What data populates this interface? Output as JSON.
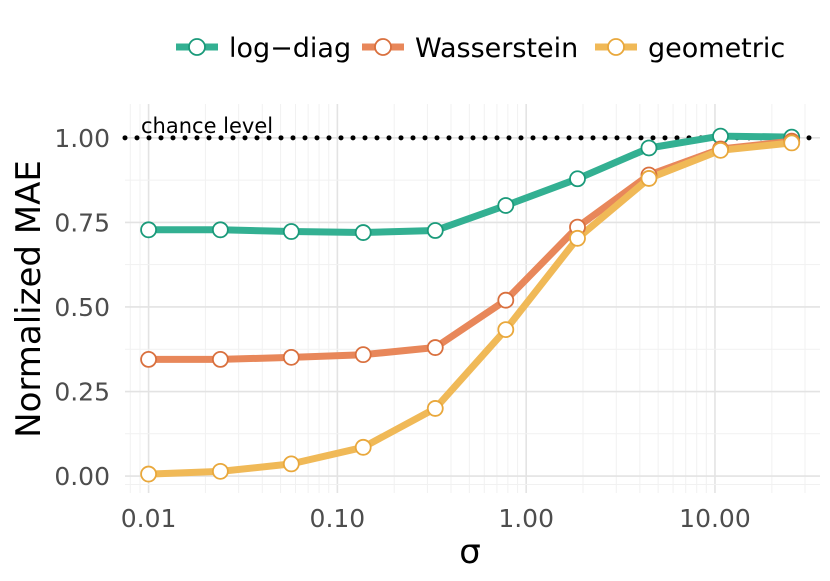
{
  "chart_data": {
    "type": "line",
    "title": "",
    "xlabel": "σ",
    "ylabel": "Normalized MAE",
    "x_scale": "log",
    "xlim": [
      0.0075,
      36
    ],
    "ylim": [
      -0.05,
      1.1
    ],
    "x_ticks": [
      0.01,
      0.1,
      1,
      10
    ],
    "x_tick_labels": [
      "0.01",
      "0.10",
      "1.00",
      "10.00"
    ],
    "y_ticks": [
      0,
      0.25,
      0.5,
      0.75,
      1
    ],
    "y_tick_labels": [
      "0.00",
      "0.25",
      "0.50",
      "0.75",
      "1.00"
    ],
    "grid": true,
    "legend_position": "top",
    "x": [
      0.01,
      0.024,
      0.057,
      0.137,
      0.33,
      0.78,
      1.87,
      4.47,
      10.7,
      25.5
    ],
    "series": [
      {
        "name": "log−diag",
        "color": "#33b092",
        "marker_edge": "#1a9a7a",
        "values": [
          0.728,
          0.728,
          0.723,
          0.72,
          0.726,
          0.8,
          0.879,
          0.97,
          1.005,
          1.002
        ]
      },
      {
        "name": "Wasserstein",
        "color": "#e8875a",
        "marker_edge": "#d9703e",
        "values": [
          0.345,
          0.345,
          0.351,
          0.359,
          0.38,
          0.52,
          0.736,
          0.89,
          0.967,
          0.99
        ]
      },
      {
        "name": "geometric",
        "color": "#f0b957",
        "marker_edge": "#e9a83c",
        "values": [
          0.006,
          0.014,
          0.036,
          0.085,
          0.2,
          0.433,
          0.703,
          0.88,
          0.963,
          0.985
        ]
      }
    ],
    "reference_line": {
      "y": 1.0,
      "label": "chance level",
      "style": "dotted"
    }
  }
}
